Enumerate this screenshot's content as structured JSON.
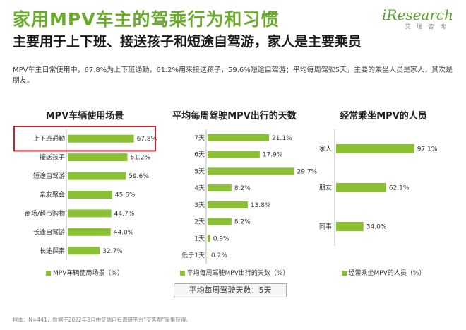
{
  "header": {
    "title": "家用MPV车主的驾乘行为和习惯",
    "subtitle": "主要用于上下班、接送孩子和短途自驾游，家人是主要乘员",
    "description": "MPV车主日常使用中，67.8%为上下班通勤，61.2%用来接送孩子，59.6%短途自驾游；平均每周驾驶5天，主要的乘坐人员是家人，其次是朋友。"
  },
  "logo": {
    "main": "iResearch",
    "sub": "艾 瑞 咨 询"
  },
  "colors": {
    "bar": "#8bc034",
    "accent": "#6aaa2c",
    "highlight_box": "#c0242b"
  },
  "footer": {
    "avg_label": "平均每周驾驶天数：5天",
    "source": "样本：N=441，数据于2022年3月由艾瑞自有调研平台“艾客帮”采集获得。"
  },
  "chart_data": [
    {
      "type": "bar",
      "orientation": "horizontal",
      "title": "MPV车辆使用场景",
      "categories": [
        "上下班通勤",
        "接送孩子",
        "短途自驾游",
        "亲友聚会",
        "商场/超市购物",
        "长途自驾游",
        "长途探亲"
      ],
      "values": [
        67.8,
        61.2,
        59.6,
        45.6,
        44.7,
        44.0,
        32.7
      ],
      "value_labels": [
        "67.8%",
        "61.2%",
        "59.6%",
        "45.6%",
        "44.7%",
        "44.0%",
        "32.7%"
      ],
      "series_name": "MPV车辆使用场景（%）",
      "highlight_index": 0,
      "xlim": [
        0,
        100
      ]
    },
    {
      "type": "bar",
      "orientation": "horizontal",
      "title": "平均每周驾驶MPV出行的天数",
      "categories": [
        "7天",
        "6天",
        "5天",
        "4天",
        "3天",
        "2天",
        "1天",
        "低于1天"
      ],
      "values": [
        21.1,
        17.9,
        29.7,
        8.2,
        13.8,
        8.2,
        0.9,
        0.2
      ],
      "value_labels": [
        "21.1%",
        "17.9%",
        "29.7%",
        "8.2%",
        "13.8%",
        "8.2%",
        "0.9%",
        "0.2%"
      ],
      "series_name": "平均每周驾驶MPV出行的天数（%）",
      "xlim": [
        0,
        40
      ]
    },
    {
      "type": "bar",
      "orientation": "horizontal",
      "title": "经常乘坐MPV的人员",
      "categories": [
        "家人",
        "朋友",
        "同事"
      ],
      "values": [
        97.1,
        62.1,
        34.0
      ],
      "value_labels": [
        "97.1%",
        "62.1%",
        "34.0%"
      ],
      "series_name": "经常乘坐MPV的人员（%）",
      "xlim": [
        0,
        100
      ]
    }
  ]
}
